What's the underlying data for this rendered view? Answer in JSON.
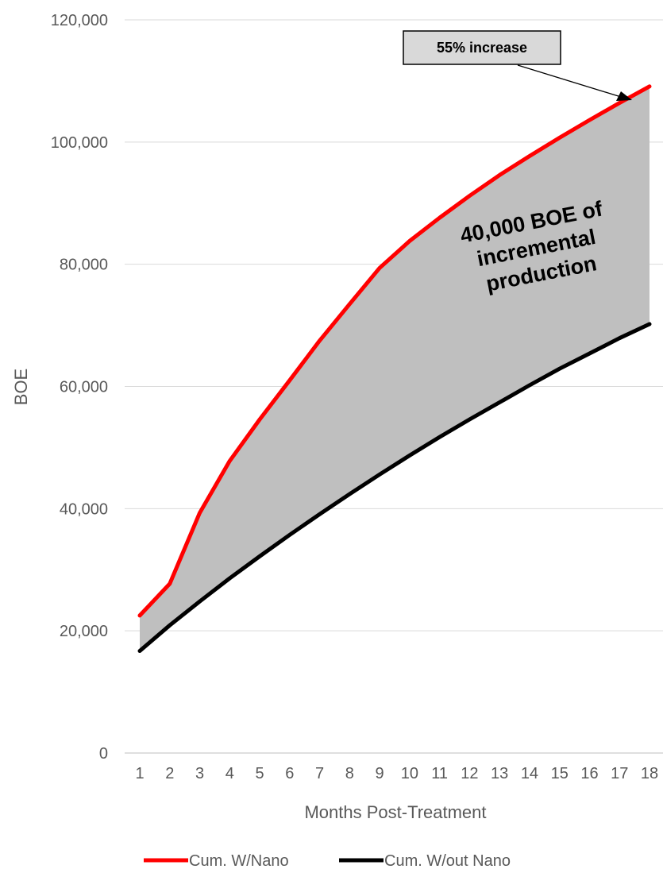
{
  "chart_data": {
    "type": "area",
    "title": "",
    "xlabel": "Months Post-Treatment",
    "ylabel": "BOE",
    "x": [
      1,
      2,
      3,
      4,
      5,
      6,
      7,
      8,
      9,
      10,
      11,
      12,
      13,
      14,
      15,
      16,
      17,
      18
    ],
    "ylim": [
      0,
      120000
    ],
    "yticks": [
      0,
      20000,
      40000,
      60000,
      80000,
      100000,
      120000
    ],
    "ytick_labels": [
      "0",
      "20,000",
      "40,000",
      "60,000",
      "80,000",
      "100,000",
      "120,000"
    ],
    "xtick_labels": [
      "1",
      "2",
      "3",
      "4",
      "5",
      "6",
      "7",
      "8",
      "9",
      "10",
      "11",
      "12",
      "13",
      "14",
      "15",
      "16",
      "17",
      "18"
    ],
    "grid": "horizontal",
    "legend_position": "bottom",
    "series": [
      {
        "name": "Cum. W/Nano",
        "color": "#ff0000",
        "values": [
          22500,
          27700,
          39300,
          47800,
          54600,
          61000,
          67500,
          73500,
          79400,
          83800,
          87600,
          91200,
          94600,
          97700,
          100700,
          103600,
          106400,
          109100
        ]
      },
      {
        "name": "Cum. W/out Nano",
        "color": "#000000",
        "values": [
          16700,
          20900,
          24800,
          28600,
          32200,
          35700,
          39100,
          42400,
          45600,
          48700,
          51700,
          54600,
          57400,
          60200,
          62900,
          65400,
          67900,
          70200
        ]
      }
    ],
    "fill_between_color": "#bfbfbf",
    "annotations": [
      {
        "text": "55% increase",
        "style": "boxed-with-arrow"
      },
      {
        "text_lines": [
          "40,000 BOE of",
          "incremental",
          "production"
        ],
        "style": "rotated-bold"
      }
    ]
  }
}
